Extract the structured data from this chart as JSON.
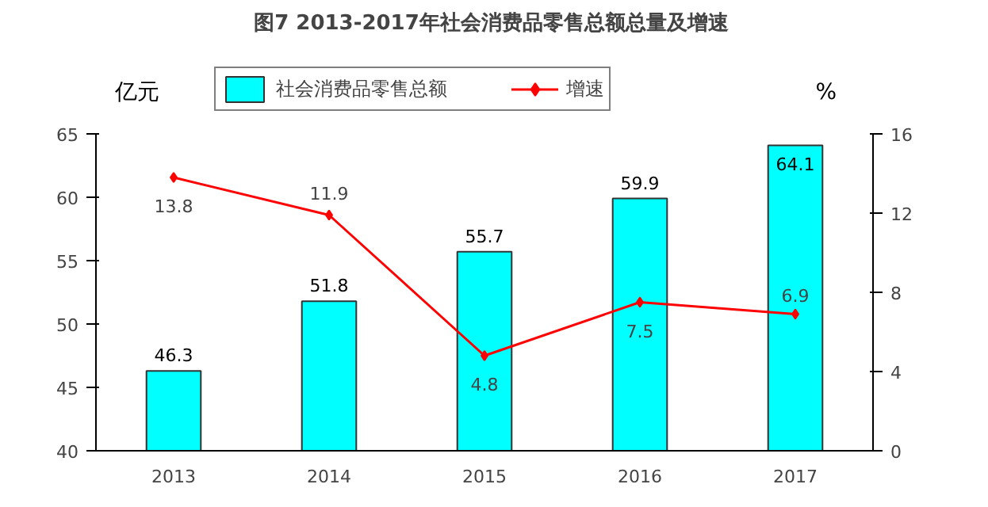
{
  "chart_data": {
    "type": "bar",
    "title": "图7  2013-2017年社会消费品零售总额总量及增速",
    "ylabel": "亿元",
    "y2label": "%",
    "categories": [
      "2013",
      "2014",
      "2015",
      "2016",
      "2017"
    ],
    "series": [
      {
        "name": "社会消费品零售总额",
        "color": "#00ffff",
        "values": [
          46.3,
          51.8,
          55.7,
          59.9,
          64.1
        ]
      },
      {
        "name": "增速",
        "type": "line",
        "color": "#ff0000",
        "axis": "y2",
        "marker": "diamond",
        "values": [
          13.8,
          11.9,
          4.8,
          7.5,
          6.9
        ]
      }
    ],
    "ylim": [
      40,
      65
    ],
    "yticks": [
      40,
      45,
      50,
      55,
      60,
      65
    ],
    "y2lim": [
      0,
      16
    ],
    "y2ticks": [
      0,
      4,
      8,
      12,
      16
    ],
    "data_labels": true,
    "grid": false,
    "legend": "top"
  }
}
